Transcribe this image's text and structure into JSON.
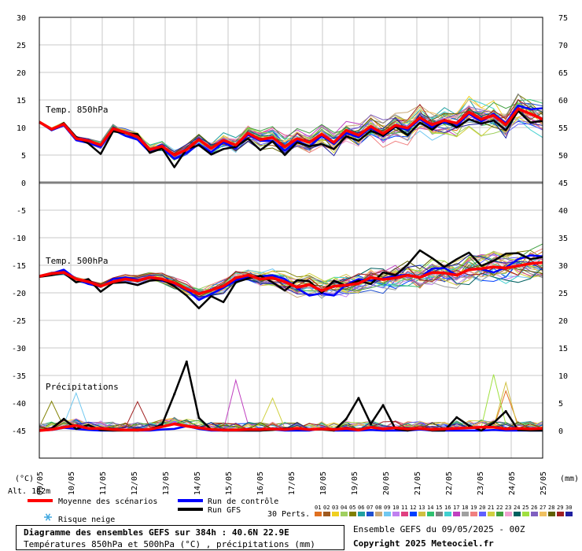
{
  "chart_data": {
    "type": "line",
    "left_axis_ticks": [
      "30",
      "25",
      "20",
      "15",
      "10",
      "5",
      "0",
      "-5",
      "-10",
      "-15",
      "-20",
      "-25",
      "-30",
      "-35",
      "-40",
      "-45"
    ],
    "right_axis_ticks": [
      "75",
      "70",
      "65",
      "60",
      "55",
      "50",
      "45",
      "40",
      "35",
      "30",
      "25",
      "20",
      "15",
      "10",
      "5",
      "0"
    ],
    "left_axis_unit": "(°C)",
    "right_axis_unit": "(mm)",
    "x_labels": [
      "09/05",
      "10/05",
      "11/05",
      "12/05",
      "13/05",
      "14/05",
      "15/05",
      "16/05",
      "17/05",
      "18/05",
      "19/05",
      "20/05",
      "21/05",
      "22/05",
      "23/05",
      "24/05",
      "25/05"
    ],
    "panels": [
      {
        "label": "Temp. 850hPa",
        "unit": "°C",
        "mean": [
          11,
          9.7,
          10.6,
          8,
          7.6,
          6.8,
          9.8,
          9.1,
          8.3,
          6,
          6.6,
          5,
          6,
          7.8,
          6.2,
          7.7,
          6.8,
          9,
          7.8,
          8.2,
          6.5,
          8,
          7.3,
          8.8,
          7.3,
          9.5,
          8.6,
          10.2,
          8.9,
          10.4,
          9.9,
          11.8,
          10.5,
          11.3,
          10.8,
          12.8,
          11.5,
          12.2,
          10.5,
          13.4,
          12.5,
          11.5
        ],
        "control": [
          11,
          9.5,
          10.4,
          7.7,
          7.2,
          6.5,
          9.6,
          8.5,
          7.8,
          5.5,
          6.3,
          4.3,
          5.4,
          7,
          5.5,
          7.3,
          6.2,
          8.7,
          7.6,
          7.6,
          5.8,
          7.6,
          6.6,
          8.5,
          7,
          9,
          8.2,
          10,
          8.4,
          10.1,
          9.6,
          11.5,
          10,
          11,
          10.3,
          12.5,
          11.1,
          12.5,
          10.8,
          14,
          13.3,
          13.5
        ],
        "gfs": [
          11,
          9.6,
          10.8,
          8.3,
          7.1,
          5.2,
          9.3,
          9,
          8.8,
          5.4,
          6.2,
          2.8,
          6.1,
          6.8,
          5.1,
          6.1,
          6.5,
          8,
          5.9,
          7.5,
          5,
          7.3,
          6.6,
          7,
          6.1,
          8.4,
          7.6,
          9.4,
          8.5,
          10.2,
          8.6,
          10.9,
          9.6,
          11.4,
          10,
          11.5,
          10.7,
          11.3,
          9.5,
          13,
          10.9,
          11.2
        ]
      },
      {
        "label": "Temp. 500hPa",
        "unit": "°C",
        "mean": [
          -17,
          -16.5,
          -16.3,
          -17.5,
          -18,
          -18.8,
          -18,
          -17.5,
          -17.8,
          -17.2,
          -17.5,
          -18.2,
          -19.3,
          -20.2,
          -19.5,
          -18.8,
          -17.3,
          -16.8,
          -17.5,
          -17.3,
          -18,
          -19,
          -18.5,
          -19.6,
          -18.8,
          -18.6,
          -18.3,
          -17.2,
          -17.6,
          -17.3,
          -16.8,
          -17.2,
          -16.3,
          -16.4,
          -16.8,
          -15.8,
          -15.6,
          -15.3,
          -15.5,
          -15.1,
          -14.7,
          -14.5
        ],
        "control": [
          -17,
          -16.5,
          -15.8,
          -17.5,
          -18.4,
          -18.9,
          -17.5,
          -17.2,
          -17.6,
          -17.3,
          -17.8,
          -18.4,
          -19.4,
          -21.3,
          -20.2,
          -19.1,
          -17.7,
          -17.1,
          -17,
          -16.8,
          -17.5,
          -19.2,
          -20.5,
          -20.1,
          -20.5,
          -18.5,
          -17.5,
          -17.8,
          -17.4,
          -16.9,
          -16.7,
          -17.2,
          -15.6,
          -15.5,
          -16.8,
          -15.7,
          -15.7,
          -16.3,
          -15.4,
          -13.9,
          -13.2,
          -13.4
        ],
        "gfs": [
          -17.1,
          -16.8,
          -16.4,
          -18.1,
          -17.5,
          -19.8,
          -18.2,
          -18.1,
          -18.6,
          -17.8,
          -17.6,
          -18.8,
          -20.5,
          -22.8,
          -20.6,
          -21.7,
          -18.1,
          -17.4,
          -16.9,
          -18.1,
          -19.6,
          -17.7,
          -17.9,
          -20,
          -17.8,
          -18.7,
          -17.8,
          -18.4,
          -16.3,
          -16.8,
          -14.9,
          -12.3,
          -13.7,
          -15.3,
          -13.9,
          -12.7,
          -15.1,
          -14.2,
          -12.9,
          -12.8,
          -13.9,
          -13.5
        ]
      },
      {
        "label": "Précipitations",
        "unit": "mm",
        "mean": [
          0,
          0.2,
          0.6,
          0.9,
          0.4,
          0.4,
          0.2,
          0.1,
          0.1,
          0.2,
          0.7,
          1.2,
          0.8,
          0.5,
          0.2,
          0.1,
          0.1,
          0.2,
          0.2,
          0.3,
          0.2,
          0.4,
          0.2,
          0.3,
          0.2,
          0.4,
          0.1,
          0.6,
          0.3,
          0.5,
          0.3,
          0.4,
          0.2,
          0.3,
          0.4,
          0.5,
          0.6,
          0.6,
          0.3,
          0.4,
          0.3,
          0.4
        ],
        "control": [
          0,
          0.1,
          0.5,
          0.3,
          0.1,
          0,
          0,
          0.1,
          0,
          0,
          0.2,
          0.3,
          0.8,
          0.3,
          0,
          0,
          0,
          0,
          0,
          0.2,
          0,
          0,
          0,
          0.4,
          0,
          0,
          0,
          0.1,
          0,
          0,
          0,
          0.2,
          0,
          0,
          0,
          0,
          0,
          0.1,
          0,
          0,
          0,
          0
        ],
        "gfs": [
          0,
          0.4,
          2.1,
          0.3,
          1,
          0.1,
          0,
          0,
          0,
          0.2,
          1.1,
          6.6,
          12.5,
          2.3,
          0.2,
          0,
          0,
          0,
          0,
          0.1,
          0.4,
          0.3,
          0.2,
          0.2,
          0,
          2.1,
          5.9,
          1.2,
          4.6,
          0.3,
          0,
          0.4,
          0,
          0,
          2.4,
          0.9,
          0,
          1.4,
          3.5,
          0.1,
          0,
          0
        ]
      }
    ],
    "perturbations_count": 30
  },
  "legend": {
    "mean_label": "Moyenne des scénarios",
    "control_label": "Run de contrôle",
    "gfs_label": "Run GFS",
    "snow_label": "Risque neige",
    "alt_label": "Alt. 162m",
    "perts_label": "30 Perts.",
    "pert_numbers": [
      "01",
      "02",
      "03",
      "04",
      "05",
      "06",
      "07",
      "08",
      "09",
      "10",
      "11",
      "12",
      "13",
      "14",
      "15",
      "16",
      "17",
      "18",
      "19",
      "20",
      "21",
      "22",
      "23",
      "24",
      "25",
      "26",
      "27",
      "28",
      "29",
      "30"
    ],
    "pert_colors": [
      "#e07020",
      "#a05a1e",
      "#f0d020",
      "#a0d060",
      "#808000",
      "#20a0a0",
      "#2050d0",
      "#c8a878",
      "#70c8f0",
      "#c080f0",
      "#e04080",
      "#0040ff",
      "#d0c040",
      "#30c070",
      "#808080",
      "#40d0d0",
      "#c040c0",
      "#a0a0a0",
      "#f08080",
      "#6060ff",
      "#d0d040",
      "#40a040",
      "#f0a0d0",
      "#006060",
      "#a0e040",
      "#8060c0",
      "#f0c060",
      "#606000",
      "#a02020",
      "#2020a0"
    ],
    "colors": {
      "mean": "#ff0000",
      "control": "#0000ff",
      "gfs": "#000000",
      "snow": "#40a8e0"
    }
  },
  "footer": {
    "title": "Diagramme des ensembles GEFS sur 384h : 40.6N 22.9E",
    "subtitle": "Températures 850hPa et 500hPa (°C) , précipitations (mm)",
    "run": "Ensemble GEFS du 09/05/2025 - 00Z",
    "copyright": "Copyright 2025 Meteociel.fr"
  }
}
